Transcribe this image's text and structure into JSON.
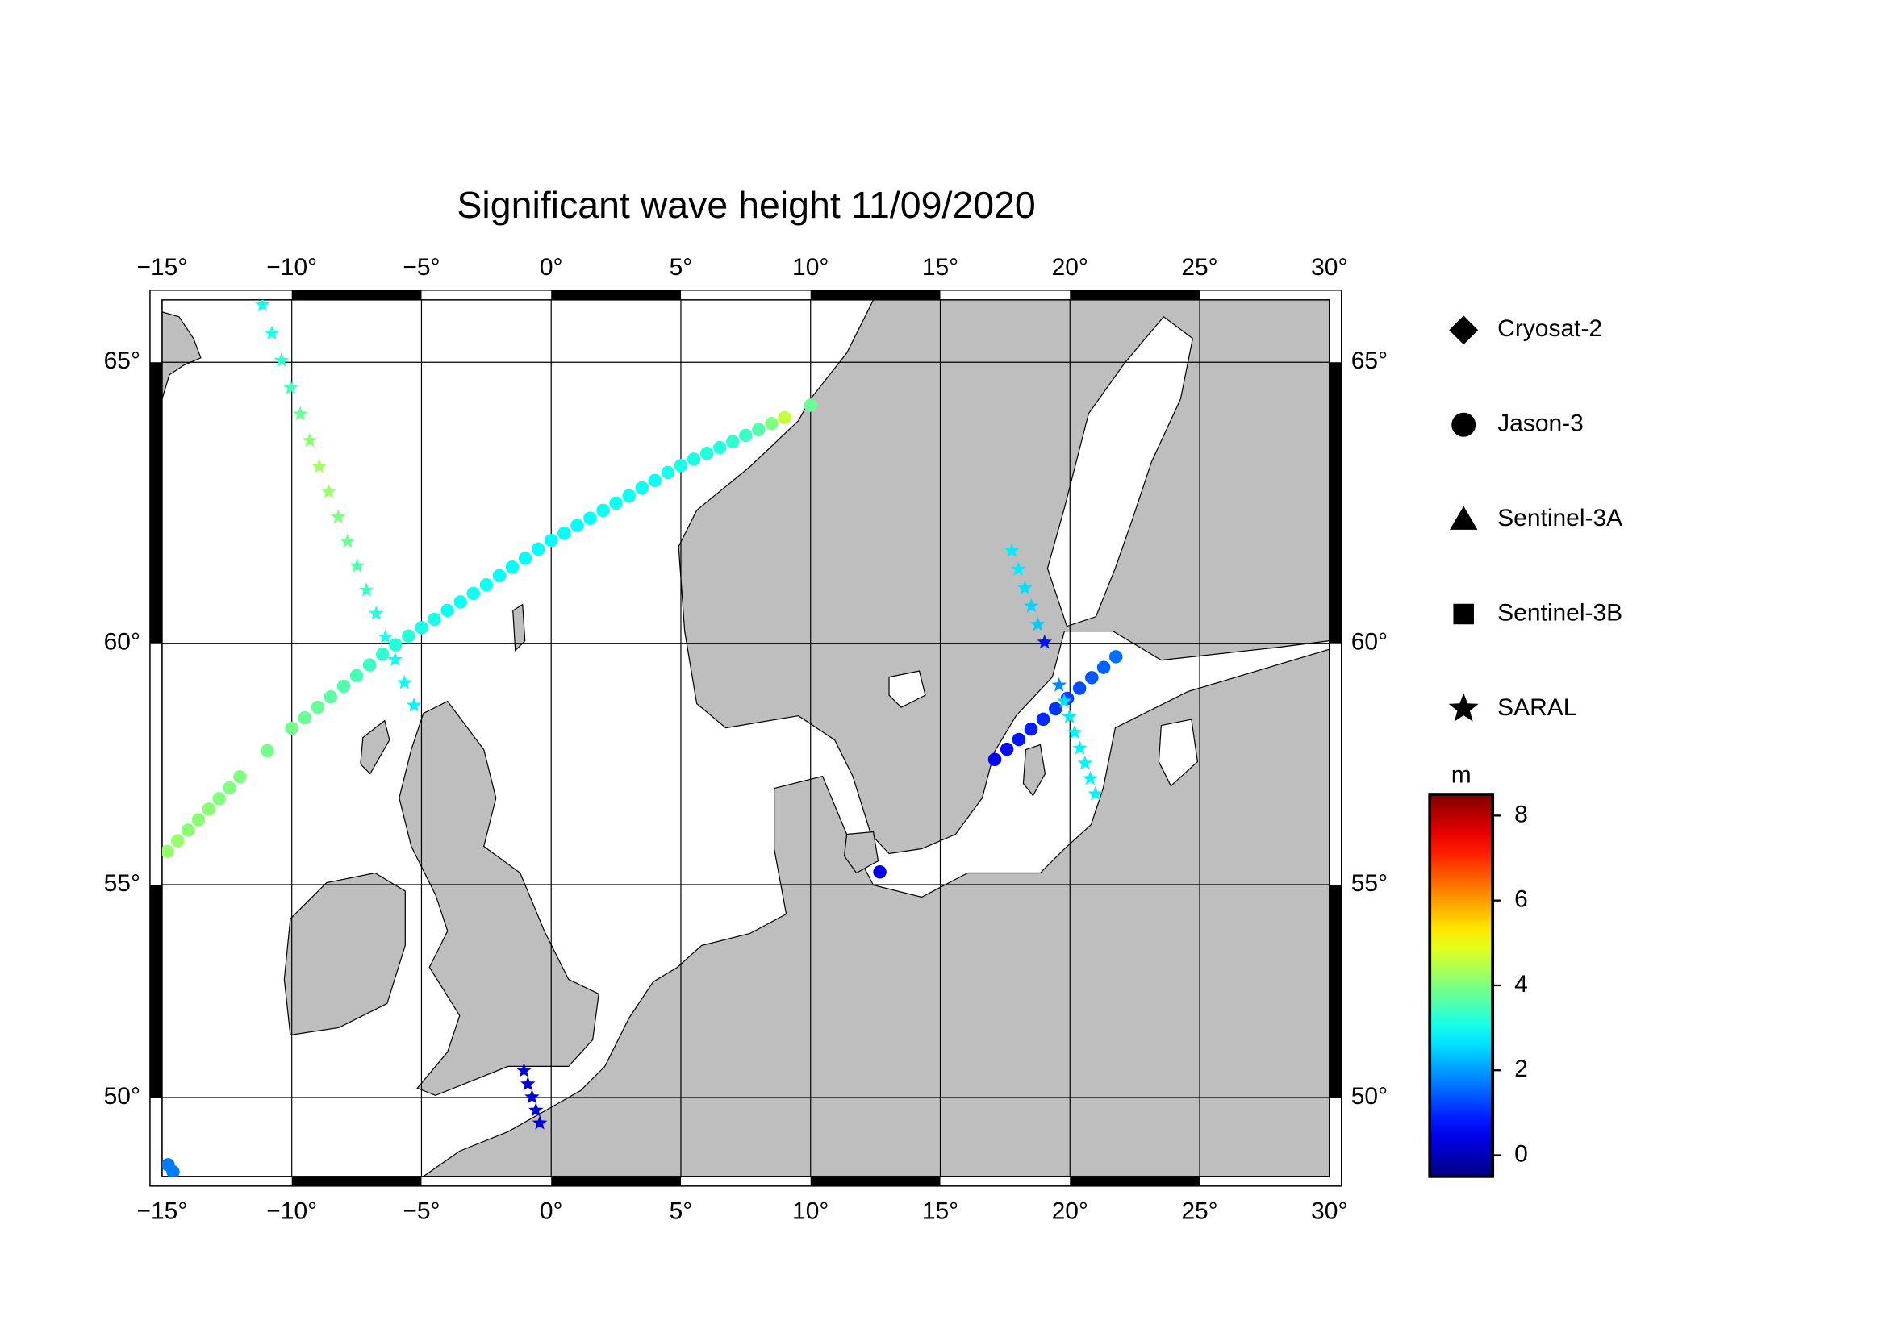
{
  "chart_data": {
    "type": "map",
    "title": "Significant wave height 11/09/2020",
    "projection": "mercator",
    "xlim": [
      -15,
      30
    ],
    "ylim": [
      48,
      66
    ],
    "xticks": [
      {
        "value": -15,
        "label": "−15°"
      },
      {
        "value": -10,
        "label": "−10°"
      },
      {
        "value": -5,
        "label": "−5°"
      },
      {
        "value": 0,
        "label": "0°"
      },
      {
        "value": 5,
        "label": "5°"
      },
      {
        "value": 10,
        "label": "10°"
      },
      {
        "value": 15,
        "label": "15°"
      },
      {
        "value": 20,
        "label": "20°"
      },
      {
        "value": 25,
        "label": "25°"
      },
      {
        "value": 30,
        "label": "30°"
      }
    ],
    "yticks": [
      {
        "value": 50,
        "label": "50°"
      },
      {
        "value": 55,
        "label": "55°"
      },
      {
        "value": 60,
        "label": "60°"
      },
      {
        "value": 65,
        "label": "65°"
      }
    ],
    "grid": true,
    "colorbar": {
      "label": "m",
      "colormap": "jet",
      "lim": [
        -0.5,
        8.5
      ],
      "ticks": [
        0,
        2,
        4,
        6,
        8
      ]
    },
    "series": [
      {
        "name": "Cryosat-2",
        "marker": "diamond",
        "x": [],
        "y": [],
        "values": []
      },
      {
        "name": "Jason-3",
        "marker": "circle",
        "x": [
          -14.8,
          -14.4,
          -14.0,
          -13.6,
          -13.2,
          -12.8,
          -12.4,
          -12.0,
          -10.94,
          -10.0,
          -9.5,
          -9.0,
          -8.5,
          -8.0,
          -7.5,
          -7.0,
          -6.5,
          -6.0,
          -5.5,
          -5.0,
          -4.5,
          -4.0,
          -3.5,
          -3.0,
          -2.5,
          -2.0,
          -1.5,
          -1.0,
          -0.5,
          0.0,
          0.5,
          1.0,
          1.5,
          2.0,
          2.5,
          3.0,
          3.5,
          4.0,
          4.5,
          5.0,
          5.5,
          6.0,
          6.5,
          7.0,
          7.5,
          8.0,
          8.5,
          9.0,
          10.0,
          17.1,
          17.57,
          18.03,
          18.5,
          18.97,
          19.44,
          19.9,
          20.37,
          20.84,
          21.3,
          21.77,
          12.67,
          -14.77,
          -14.58
        ],
        "y": [
          55.73,
          55.96,
          56.19,
          56.41,
          56.64,
          56.86,
          57.09,
          57.32,
          57.86,
          58.32,
          58.53,
          58.74,
          58.95,
          59.16,
          59.37,
          59.58,
          59.79,
          59.97,
          60.14,
          60.3,
          60.46,
          60.63,
          60.79,
          60.95,
          61.11,
          61.28,
          61.44,
          61.6,
          61.77,
          61.93,
          62.06,
          62.2,
          62.33,
          62.47,
          62.6,
          62.73,
          62.87,
          63.0,
          63.14,
          63.26,
          63.37,
          63.47,
          63.57,
          63.67,
          63.78,
          63.88,
          63.98,
          64.08,
          64.29,
          57.68,
          57.89,
          58.09,
          58.3,
          58.5,
          58.71,
          58.92,
          59.12,
          59.33,
          59.53,
          59.74,
          55.28,
          48.3,
          48.12
        ],
        "values": [
          4.2,
          4.2,
          4.1,
          4.1,
          4.1,
          4.0,
          4.0,
          4.0,
          3.9,
          3.9,
          3.8,
          3.8,
          3.7,
          3.6,
          3.5,
          3.4,
          3.3,
          3.2,
          3.2,
          3.1,
          3.1,
          3.0,
          3.0,
          3.0,
          3.0,
          2.9,
          2.9,
          2.9,
          2.9,
          2.9,
          2.9,
          2.9,
          2.9,
          3.0,
          3.0,
          3.0,
          3.0,
          3.0,
          3.1,
          3.1,
          3.1,
          3.2,
          3.2,
          3.3,
          3.4,
          3.6,
          4.0,
          4.6,
          3.8,
          0.6,
          0.7,
          0.8,
          0.9,
          1.0,
          1.1,
          1.2,
          1.3,
          1.4,
          1.5,
          1.6,
          0.5,
          1.7,
          1.7
        ]
      },
      {
        "name": "Sentinel-3A",
        "marker": "triangle",
        "x": [],
        "y": [],
        "values": []
      },
      {
        "name": "Sentinel-3B",
        "marker": "square",
        "x": [],
        "y": [],
        "values": []
      },
      {
        "name": "SARAL",
        "marker": "star",
        "x": [
          -11.13,
          -10.77,
          -10.4,
          -10.04,
          -9.67,
          -9.31,
          -8.94,
          -8.58,
          -8.21,
          -7.85,
          -7.48,
          -7.12,
          -6.75,
          -6.39,
          -6.02,
          -5.66,
          -5.29,
          17.76,
          18.01,
          18.26,
          18.51,
          18.76,
          19.02,
          19.58,
          19.78,
          19.98,
          20.18,
          20.38,
          20.58,
          20.78,
          20.98,
          -1.05,
          -0.9,
          -0.74,
          -0.59,
          -0.44
        ],
        "y": [
          65.92,
          65.47,
          65.03,
          64.58,
          64.14,
          63.69,
          63.24,
          62.8,
          62.35,
          61.91,
          61.46,
          61.01,
          60.57,
          60.12,
          59.68,
          59.23,
          58.78,
          61.74,
          61.4,
          61.05,
          60.71,
          60.36,
          60.02,
          59.18,
          58.86,
          58.55,
          58.23,
          57.91,
          57.6,
          57.28,
          56.96,
          50.66,
          50.33,
          50.01,
          49.68,
          49.36
        ],
        "values": [
          3.0,
          3.1,
          3.3,
          3.5,
          3.8,
          4.1,
          4.3,
          4.2,
          4.0,
          3.8,
          3.6,
          3.4,
          3.2,
          3.1,
          3.0,
          2.9,
          2.8,
          2.7,
          2.7,
          2.6,
          2.5,
          2.4,
          0.8,
          1.8,
          2.6,
          2.7,
          2.8,
          2.8,
          2.8,
          2.8,
          2.8,
          0.4,
          0.3,
          0.3,
          0.3,
          0.3
        ]
      }
    ]
  }
}
